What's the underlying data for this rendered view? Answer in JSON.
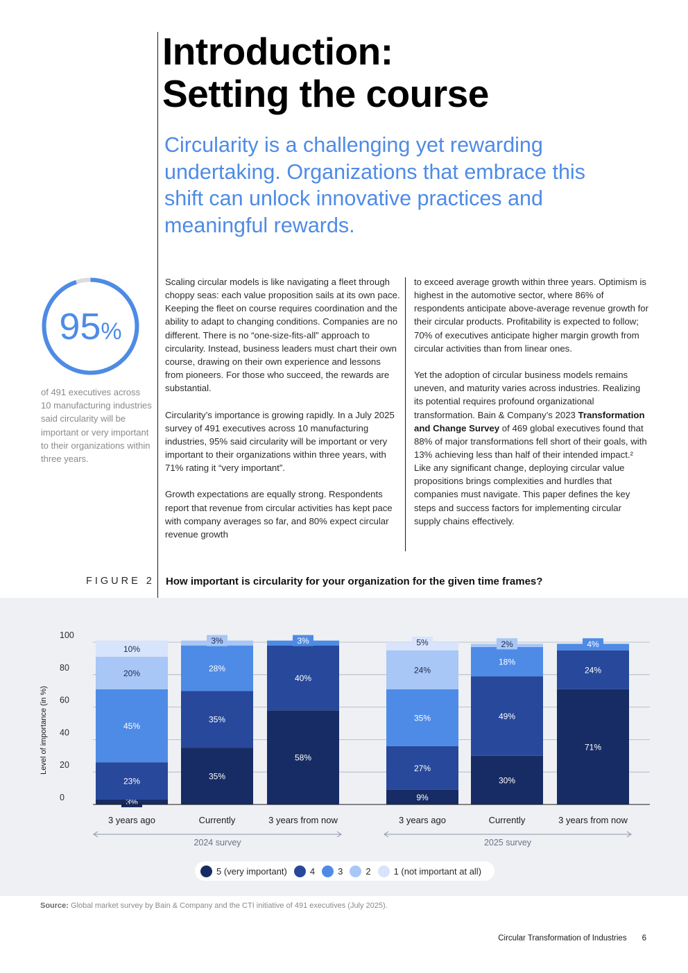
{
  "title": {
    "line1": "Introduction:",
    "line2": "Setting the course"
  },
  "subtitle": "Circularity is a challenging yet rewarding undertaking. Organizations that embrace this shift can unlock innovative practices and meaningful rewards.",
  "stat": {
    "value": "95",
    "unit": "%",
    "fraction": 0.95,
    "description": "of 491 executives across 10 manufacturing industries said circularity will be important or very important to their organizations within three years."
  },
  "body": {
    "col1": [
      "Scaling circular models is like navigating a fleet through choppy seas: each value proposition sails at its own pace. Keeping the fleet on course requires coordination and the ability to adapt to changing conditions. Companies are no different. There is no “one-size-fits-all” approach to circularity. Instead, business leaders must chart their own course, drawing on their own experience and lessons from pioneers. For those who succeed, the rewards are substantial.",
      "Circularity’s importance is growing rapidly. In a July 2025 survey of 491 executives across 10 manufacturing industries, 95% said circularity will be important or very important to their organizations within three years, with 71% rating it “very important”.",
      "Growth expectations are equally strong. Respondents report that revenue from circular activities has kept pace with company averages so far, and 80% expect circular revenue growth"
    ],
    "col2_p1": "to exceed average growth within three years. Optimism is highest in the automotive sector, where 86% of respondents anticipate above-average revenue growth for their circular products. Profitability is expected to follow; 70% of executives anticipate higher margin growth from circular activities than from linear ones.",
    "col2_p2_before": "Yet the adoption of circular business models remains uneven, and maturity varies across industries. Realizing its potential requires profound organizational transformation. Bain & Company’s 2023 ",
    "col2_p2_bold": "Transformation and Change Survey",
    "col2_p2_after": " of 469 global executives found that 88% of major transformations fell short of their goals, with 13% achieving less than half of their intended impact.² Like any significant change, deploying circular value propositions brings complexities and hurdles that companies must navigate. This paper defines the key steps and success factors for implementing circular supply chains effectively."
  },
  "figure": {
    "label": "FIGURE 2",
    "title": "How important is circularity for your organization for the given time frames?"
  },
  "chart_data": {
    "type": "bar",
    "stacked": true,
    "ylabel": "Level of importance (in %)",
    "ylim": [
      0,
      100
    ],
    "yticks": [
      "0",
      "20",
      "40",
      "60",
      "80",
      "100"
    ],
    "grid": true,
    "categories": [
      "3 years ago",
      "Currently",
      "3 years from now",
      "3 years ago",
      "Currently",
      "3 years from now"
    ],
    "groups": [
      {
        "name": "2024 survey",
        "categories": [
          0,
          1,
          2
        ]
      },
      {
        "name": "2025 survey",
        "categories": [
          3,
          4,
          5
        ]
      }
    ],
    "series": [
      {
        "name": "5 (very important)",
        "color": "#172c64",
        "values": [
          3,
          35,
          58,
          9,
          30,
          71
        ]
      },
      {
        "name": "4",
        "color": "#27489b",
        "values": [
          23,
          35,
          40,
          27,
          49,
          24
        ]
      },
      {
        "name": "3",
        "color": "#4e8be6",
        "values": [
          45,
          28,
          3,
          35,
          18,
          4
        ]
      },
      {
        "name": "2",
        "color": "#a8c6f6",
        "values": [
          20,
          3,
          0,
          24,
          2,
          0
        ]
      },
      {
        "name": "1 (not important at all)",
        "color": "#d7e4fb",
        "values": [
          10,
          0,
          0,
          5,
          0,
          0
        ]
      }
    ],
    "labels": [
      [
        "3%",
        "35%",
        "58%",
        "9%",
        "30%",
        "71%"
      ],
      [
        "23%",
        "35%",
        "40%",
        "27%",
        "49%",
        "24%"
      ],
      [
        "45%",
        "28%",
        "3%",
        "35%",
        "18%",
        "4%"
      ],
      [
        "20%",
        "3%",
        "",
        "24%",
        "2%",
        ""
      ],
      [
        "10%",
        "",
        "",
        "5%",
        "",
        ""
      ]
    ]
  },
  "source": {
    "label": "Source:",
    "text": " Global market survey by Bain & Company and the CTI initiative of 491 executives (July 2025)."
  },
  "footer": {
    "title": "Circular Transformation of Industries",
    "page": "6"
  }
}
